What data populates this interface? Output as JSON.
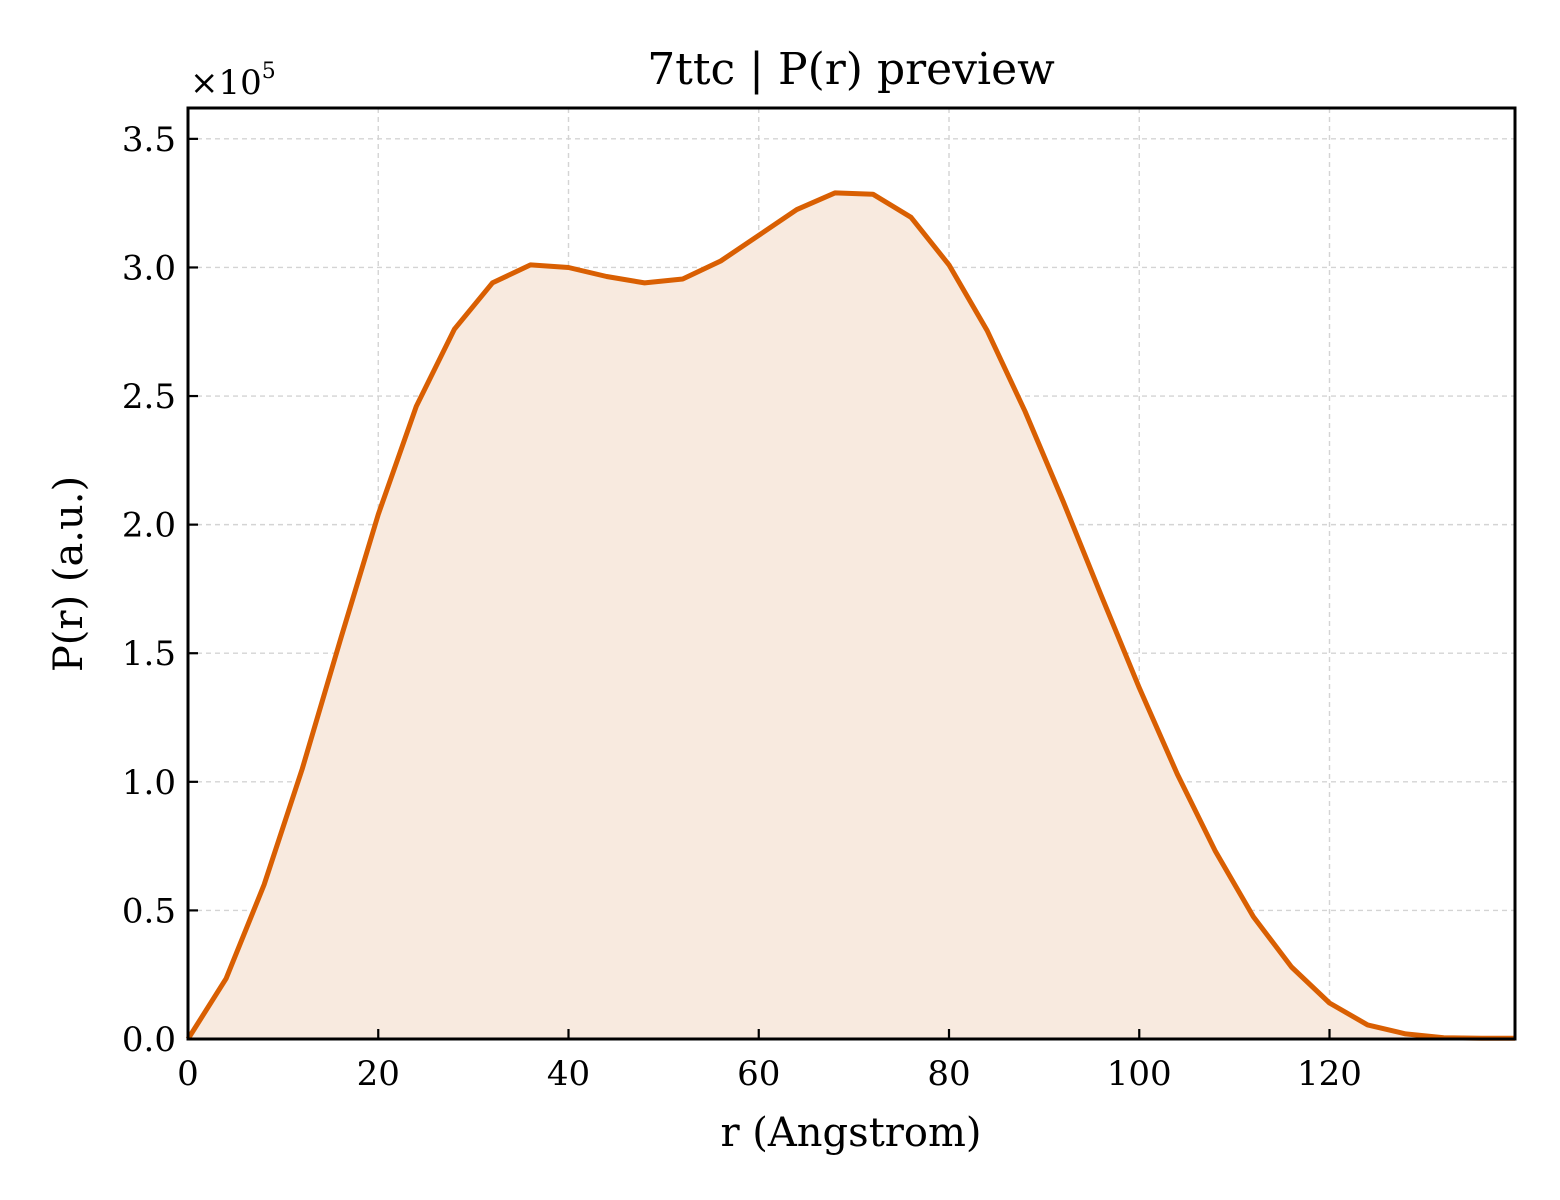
{
  "chart_data": {
    "type": "area",
    "title": "7ttc | P(r) preview",
    "xlabel": "r (Angstrom)",
    "ylabel": "P(r) (a.u.)",
    "y_multiplier_label": "×10",
    "y_multiplier_exponent": "5",
    "xlim": [
      0,
      139.5
    ],
    "ylim": [
      0,
      3.62
    ],
    "x_ticks": [
      0,
      20,
      40,
      60,
      80,
      100,
      120
    ],
    "x_tick_labels": [
      "0",
      "20",
      "40",
      "60",
      "80",
      "100",
      "120"
    ],
    "y_ticks": [
      0,
      0.5,
      1.0,
      1.5,
      2.0,
      2.5,
      3.0,
      3.5
    ],
    "y_tick_labels": [
      "0.0",
      "0.5",
      "1.0",
      "1.5",
      "2.0",
      "2.5",
      "3.0",
      "3.5"
    ],
    "grid": true,
    "line_color": "#d95f02",
    "fill_color": "#f8eadf",
    "series": [
      {
        "x": [
          0,
          4,
          8,
          12,
          16,
          20,
          24,
          28,
          32,
          36,
          40,
          44,
          48,
          52,
          56,
          60,
          64,
          68,
          72,
          76,
          80,
          84,
          88,
          92,
          96,
          100,
          104,
          108,
          112,
          116,
          120,
          124,
          128,
          132,
          136,
          139.5
        ],
        "y": [
          0.0,
          0.235,
          0.6,
          1.05,
          1.55,
          2.04,
          2.46,
          2.76,
          2.94,
          3.01,
          3.0,
          2.965,
          2.94,
          2.955,
          3.025,
          3.125,
          3.225,
          3.29,
          3.285,
          3.195,
          3.01,
          2.755,
          2.44,
          2.09,
          1.725,
          1.365,
          1.03,
          0.73,
          0.475,
          0.28,
          0.14,
          0.055,
          0.02,
          0.005,
          0.003,
          0.003
        ]
      }
    ]
  }
}
